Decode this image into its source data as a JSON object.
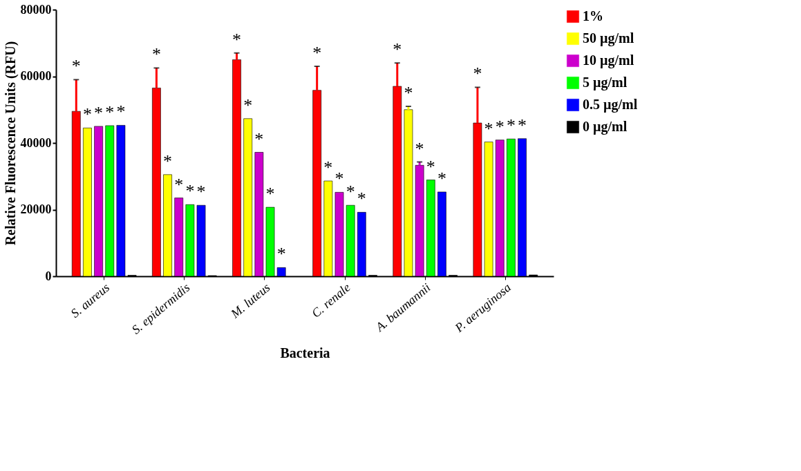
{
  "chart_data": {
    "type": "bar",
    "xlabel": "Bacteria",
    "ylabel": "Relative Fluorescence Units (RFU)",
    "categories": [
      "S. aureus",
      "S. epidermidis",
      "M. luteus",
      "C. renale",
      "A. baumannii",
      "P. aeruginosa"
    ],
    "ylim": [
      0,
      80000
    ],
    "yticks": [
      0,
      20000,
      40000,
      60000,
      80000
    ],
    "grid": false,
    "legend": "right",
    "series": [
      {
        "name": "1%",
        "color": "#ff0000",
        "values": [
          49500,
          56500,
          65000,
          55800,
          57000,
          46000
        ],
        "errors": [
          [
            49500,
            59000
          ],
          [
            56500,
            62500
          ],
          [
            65000,
            67000
          ],
          [
            55800,
            63000
          ],
          [
            57000,
            64000
          ],
          [
            46000,
            56700
          ]
        ],
        "value_labels": [
          "*",
          "*",
          "*",
          "*",
          "*",
          "*"
        ]
      },
      {
        "name": "50 µg/ml",
        "color": "#ffff00",
        "values": [
          44500,
          30500,
          47300,
          28600,
          50000,
          40300
        ],
        "errors": [
          null,
          null,
          null,
          null,
          [
            50000,
            51000
          ],
          null
        ],
        "value_labels": [
          "*",
          "*",
          "*",
          "*",
          "*",
          "*"
        ]
      },
      {
        "name": "10 µg/ml",
        "color": "#cc00cc",
        "values": [
          45000,
          23500,
          37200,
          25200,
          33300,
          40900
        ],
        "errors": [
          null,
          null,
          null,
          null,
          [
            33300,
            34300
          ],
          null
        ],
        "value_labels": [
          "*",
          "*",
          "*",
          "*",
          "*",
          "*"
        ]
      },
      {
        "name": "5 µg/ml",
        "color": "#00ff00",
        "values": [
          45200,
          21500,
          20700,
          21300,
          28900,
          41200
        ],
        "value_labels": [
          "*",
          "*",
          "*",
          "*",
          "*",
          "*"
        ]
      },
      {
        "name": "0.5 µg/ml",
        "color": "#0000ff",
        "values": [
          45300,
          21300,
          2600,
          19200,
          25300,
          41300
        ],
        "value_labels": [
          "*",
          "*",
          "*",
          "*",
          "*",
          "*"
        ]
      },
      {
        "name": "0  µg/ml",
        "color": "#000000",
        "values": [
          300,
          200,
          null,
          300,
          300,
          400
        ]
      }
    ]
  }
}
